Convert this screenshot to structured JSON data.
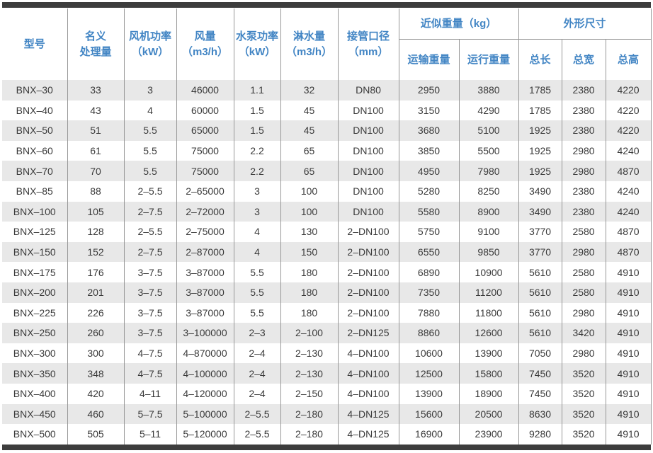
{
  "colors": {
    "header_text": "#4285c4",
    "row_stripe": "#e8e8e8",
    "divider_line": "#979797",
    "frame_bar": "#3d3d3d",
    "data_text": "#3a3a3a"
  },
  "table": {
    "header": {
      "model": "型号",
      "capacity_line1": "名义",
      "capacity_line2": "处理量",
      "fan_power_line1": "风机功率",
      "fan_power_line2": "（kW）",
      "air_volume_line1": "风量",
      "air_volume_line2": "（m3/h）",
      "pump_power_line1": "水泵功率",
      "pump_power_line2": "（kW）",
      "spray_volume_line1": "淋水量",
      "spray_volume_line2": "（m3/h）",
      "pipe_diameter_line1": "接管口径",
      "pipe_diameter_line2": "（mm）",
      "weight_group": "近似重量（kg）",
      "transport_weight": "运输重量",
      "operating_weight": "运行重量",
      "dimensions_group": "外形尺寸",
      "total_length": "总长",
      "total_width": "总宽",
      "total_height": "总高"
    },
    "rows": [
      [
        "BNX–30",
        "33",
        "3",
        "46000",
        "1.1",
        "32",
        "DN80",
        "2950",
        "3880",
        "1785",
        "2380",
        "4220"
      ],
      [
        "BNX–40",
        "43",
        "4",
        "60000",
        "1.5",
        "45",
        "DN100",
        "3150",
        "4290",
        "1785",
        "2380",
        "4220"
      ],
      [
        "BNX–50",
        "51",
        "5.5",
        "65000",
        "1.5",
        "45",
        "DN100",
        "3680",
        "5100",
        "1925",
        "2380",
        "4220"
      ],
      [
        "BNX–60",
        "61",
        "5.5",
        "75000",
        "2.2",
        "65",
        "DN100",
        "3850",
        "5500",
        "1925",
        "2980",
        "4240"
      ],
      [
        "BNX–70",
        "70",
        "5.5",
        "75000",
        "2.2",
        "65",
        "DN100",
        "4950",
        "7980",
        "1925",
        "2980",
        "4870"
      ],
      [
        "BNX–85",
        "88",
        "2–5.5",
        "2–65000",
        "3",
        "100",
        "DN100",
        "5280",
        "8250",
        "3490",
        "2380",
        "4240"
      ],
      [
        "BNX–100",
        "105",
        "2–7.5",
        "2–72000",
        "3",
        "100",
        "DN100",
        "5580",
        "8900",
        "3490",
        "2380",
        "4240"
      ],
      [
        "BNX–125",
        "128",
        "2–5.5",
        "2–75000",
        "4",
        "130",
        "2–DN100",
        "5750",
        "9100",
        "3770",
        "2580",
        "4870"
      ],
      [
        "BNX–150",
        "152",
        "2–7.5",
        "2–87000",
        "4",
        "150",
        "2–DN100",
        "6550",
        "9850",
        "3770",
        "2980",
        "4870"
      ],
      [
        "BNX–175",
        "176",
        "3–7.5",
        "3–87000",
        "5.5",
        "180",
        "2–DN100",
        "6890",
        "10900",
        "5610",
        "2580",
        "4910"
      ],
      [
        "BNX–200",
        "201",
        "3–7.5",
        "3–87000",
        "5.5",
        "180",
        "2–DN100",
        "7350",
        "11200",
        "5610",
        "2580",
        "4910"
      ],
      [
        "BNX–225",
        "226",
        "3–7.5",
        "3–87000",
        "5.5",
        "180",
        "2–DN100",
        "7880",
        "11800",
        "5610",
        "2980",
        "4910"
      ],
      [
        "BNX–250",
        "260",
        "3–7.5",
        "3–100000",
        "2–3",
        "2–100",
        "2–DN125",
        "8860",
        "12600",
        "5610",
        "3420",
        "4910"
      ],
      [
        "BNX–300",
        "300",
        "4–7.5",
        "4–870000",
        "2–4",
        "2–130",
        "4–DN100",
        "10600",
        "13900",
        "7050",
        "2980",
        "4910"
      ],
      [
        "BNX–350",
        "348",
        "4–7.5",
        "4–100000",
        "2–4",
        "2–130",
        "4–DN100",
        "12500",
        "15800",
        "7450",
        "3520",
        "4910"
      ],
      [
        "BNX–400",
        "420",
        "4–11",
        "4–120000",
        "2–4",
        "2–150",
        "4–DN100",
        "13900",
        "18900",
        "7450",
        "3520",
        "4910"
      ],
      [
        "BNX–450",
        "460",
        "5–7.5",
        "5–100000",
        "2–5.5",
        "2–180",
        "4–DN125",
        "15600",
        "20500",
        "8630",
        "3520",
        "4910"
      ],
      [
        "BNX–500",
        "505",
        "5–11",
        "5–120000",
        "2–5.5",
        "2–180",
        "4–DN125",
        "16900",
        "23900",
        "9280",
        "3520",
        "4910"
      ]
    ]
  }
}
